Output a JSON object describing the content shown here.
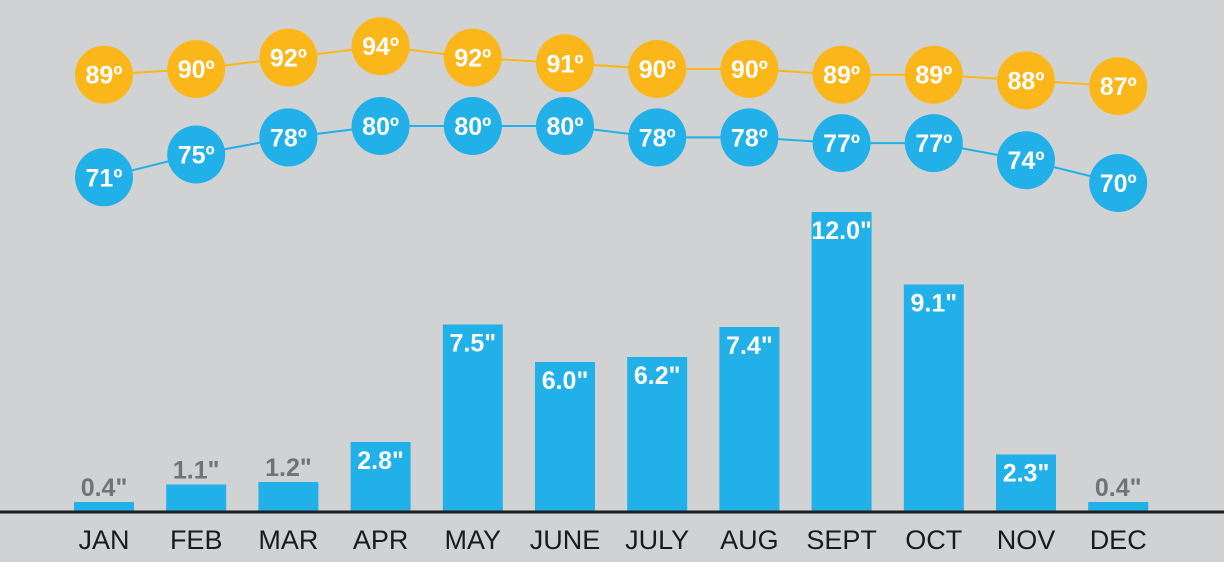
{
  "chart_data": {
    "type": "bar",
    "title": "",
    "xlabel": "",
    "ylabel": "",
    "categories": [
      "JAN",
      "FEB",
      "MAR",
      "APR",
      "MAY",
      "JUNE",
      "JULY",
      "AUG",
      "SEPT",
      "OCT",
      "NOV",
      "DEC"
    ],
    "series": [
      {
        "kind": "line",
        "color": "#fbb71a",
        "values": [
          89,
          90,
          92,
          94,
          92,
          91,
          90,
          90,
          89,
          89,
          88,
          87
        ],
        "labels": [
          "89º",
          "90º",
          "92º",
          "94º",
          "92º",
          "91º",
          "90º",
          "90º",
          "89º",
          "89º",
          "88º",
          "87º"
        ]
      },
      {
        "kind": "line",
        "color": "#21b0e7",
        "values": [
          71,
          75,
          78,
          80,
          80,
          80,
          78,
          78,
          77,
          77,
          74,
          70
        ],
        "labels": [
          "71º",
          "75º",
          "78º",
          "80º",
          "80º",
          "80º",
          "78º",
          "78º",
          "77º",
          "77º",
          "74º",
          "70º"
        ]
      },
      {
        "kind": "bar",
        "color": "#21b0e7",
        "values": [
          0.4,
          1.1,
          1.2,
          2.8,
          7.5,
          6.0,
          6.2,
          7.4,
          12.0,
          9.1,
          2.3,
          0.4
        ],
        "labels": [
          "0.4\"",
          "1.1\"",
          "1.2\"",
          "2.8\"",
          "7.5\"",
          "6.0\"",
          "6.2\"",
          "7.4\"",
          "12.0\"",
          "9.1\"",
          "2.3\"",
          "0.4\""
        ]
      }
    ],
    "grid": false,
    "legend": "none"
  },
  "colors": {
    "background": "#d1d2d4",
    "high_temp": "#fbb71a",
    "low_temp": "#21b0e7",
    "bar": "#21b0e7",
    "outside_label": "#737373",
    "baseline": "#1f1f1f"
  }
}
